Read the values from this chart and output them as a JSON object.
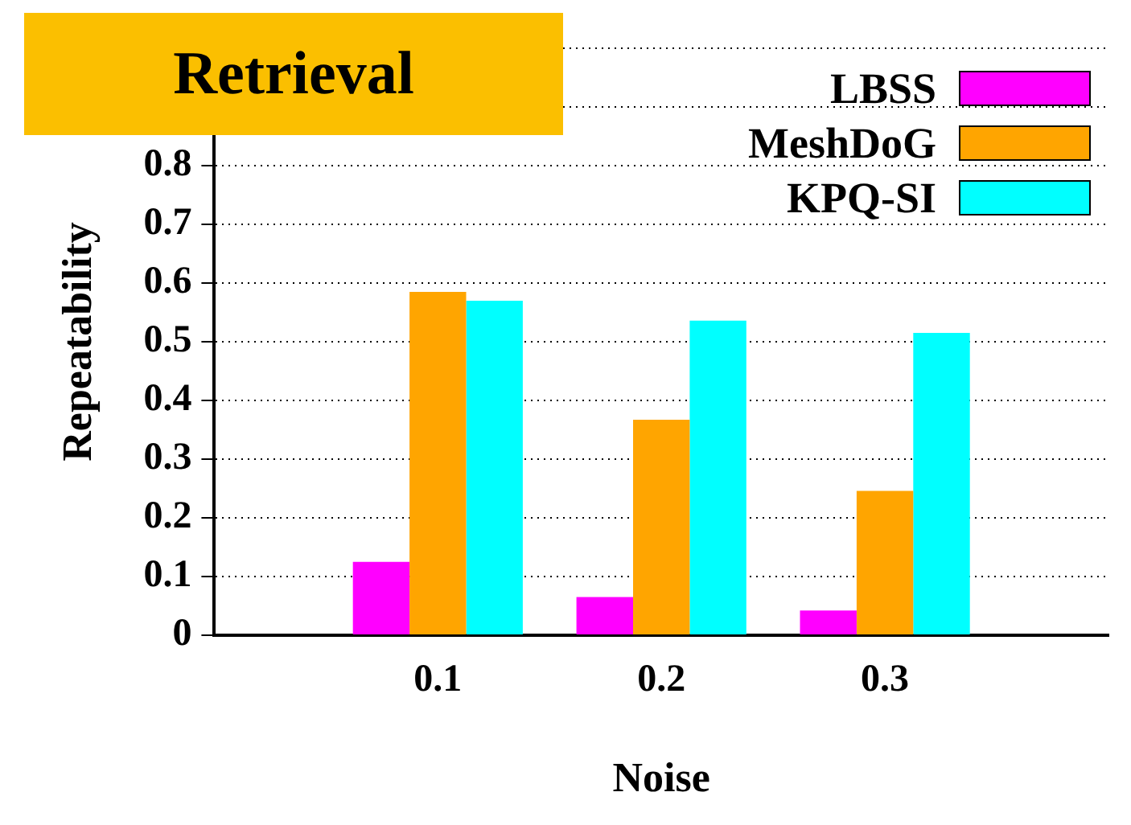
{
  "chart_data": {
    "type": "bar",
    "title": "Retrieval",
    "xlabel": "Noise",
    "ylabel": "Repeatability",
    "categories": [
      null,
      "0.1",
      "0.2",
      "0.3",
      null
    ],
    "series": [
      {
        "name": "LBSS",
        "color": "#ff00ff",
        "values": [
          null,
          0.125,
          0.065,
          0.042,
          null
        ]
      },
      {
        "name": "MeshDoG",
        "color": "#ffa500",
        "values": [
          null,
          0.585,
          0.367,
          0.246,
          null
        ]
      },
      {
        "name": "KPQ-SI",
        "color": "#00ffff",
        "values": [
          null,
          0.57,
          0.536,
          0.515,
          null
        ]
      }
    ],
    "ylim": [
      0,
      1
    ],
    "yticks": [
      0,
      0.1,
      0.2,
      0.3,
      0.4,
      0.5,
      0.6,
      0.7,
      0.8,
      {
        "value": 0.9,
        "label": null
      },
      {
        "value": 1,
        "label": null
      }
    ],
    "grid": "y",
    "legend": "top right"
  }
}
